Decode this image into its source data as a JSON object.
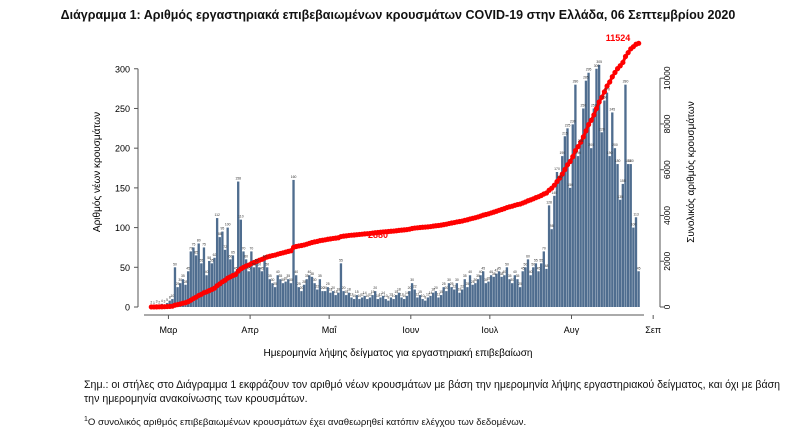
{
  "chart_data": {
    "type": "bar+line",
    "title": "Διάγραμμα 1: Αριθμός εργαστηριακά επιβεβαιωμένων κρουσμάτων COVID-19 στην Ελλάδα, 06 Σεπτεμβρίου 2020",
    "xlabel": "Ημερομηνία λήψης δείγματος για εργαστηριακή επιβεβαίωση",
    "ylabel_left": "Αριθμός νέων κρουσμάτων",
    "ylabel_right": "Συνολικός αριθμός κρουσμάτων",
    "ylim_left": [
      0,
      340
    ],
    "yticks_left": [
      0,
      50,
      100,
      150,
      200,
      250,
      300
    ],
    "ylim_right": [
      0,
      11800
    ],
    "yticks_right": [
      0,
      2000,
      4000,
      6000,
      8000,
      10000
    ],
    "x_tick_labels": [
      "Μαρ",
      "Απρ",
      "Μαΐ",
      "Ιουν",
      "Ιουλ",
      "Αυγ",
      "Σεπ"
    ],
    "annotations": [
      "2880",
      "11524"
    ],
    "colors": {
      "bars": "#4f6d8f",
      "cumulative": "#ff0000",
      "axis": "#555555"
    },
    "series": [
      {
        "name": "Νέα κρούσματα",
        "kind": "bar",
        "axis": "left",
        "values": [
          2,
          1,
          3,
          2,
          4,
          3,
          5,
          8,
          10,
          50,
          25,
          30,
          35,
          28,
          45,
          70,
          75,
          65,
          80,
          55,
          75,
          40,
          58,
          55,
          62,
          112,
          88,
          95,
          72,
          100,
          60,
          65,
          45,
          158,
          110,
          70,
          60,
          45,
          70,
          50,
          55,
          50,
          45,
          60,
          50,
          35,
          30,
          25,
          40,
          35,
          30,
          32,
          35,
          30,
          160,
          40,
          25,
          20,
          28,
          35,
          40,
          38,
          30,
          22,
          35,
          20,
          20,
          25,
          18,
          20,
          15,
          18,
          55,
          20,
          15,
          18,
          12,
          10,
          15,
          10,
          12,
          14,
          10,
          12,
          15,
          20,
          10,
          12,
          14,
          10,
          8,
          12,
          10,
          15,
          18,
          12,
          10,
          14,
          20,
          30,
          22,
          12,
          15,
          10,
          8,
          12,
          14,
          18,
          20,
          12,
          15,
          25,
          20,
          30,
          25,
          22,
          30,
          18,
          22,
          35,
          25,
          40,
          28,
          30,
          35,
          40,
          45,
          30,
          32,
          40,
          38,
          42,
          45,
          38,
          40,
          50,
          35,
          30,
          40,
          35,
          25,
          45,
          50,
          60,
          40,
          50,
          55,
          45,
          55,
          70,
          48,
          128,
          98,
          140,
          170,
          160,
          190,
          215,
          225,
          150,
          230,
          280,
          190,
          205,
          250,
          285,
          295,
          200,
          250,
          300,
          305,
          220,
          260,
          270,
          190,
          245,
          200,
          180,
          135,
          155,
          280,
          180,
          180,
          100,
          113,
          45
        ]
      },
      {
        "name": "Συνολικά κρούσματα",
        "kind": "cumulative",
        "axis": "right",
        "total": 11524
      }
    ]
  },
  "note": "Σημ.: οι στήλες στο Διάγραμμα 1 εκφράζουν τον αριθμό νέων κρουσμάτων με βάση την ημερομηνία λήψης εργαστηριακού δείγματος, και όχι με βάση την ημερομηνία ανακοίνωσης των κρουσμάτων.",
  "footnote_mark": "1",
  "footnote": "Ο συνολικός αριθμός επιβεβαιωμένων κρουσμάτων έχει αναθεωρηθεί κατόπιν ελέγχου των δεδομένων."
}
